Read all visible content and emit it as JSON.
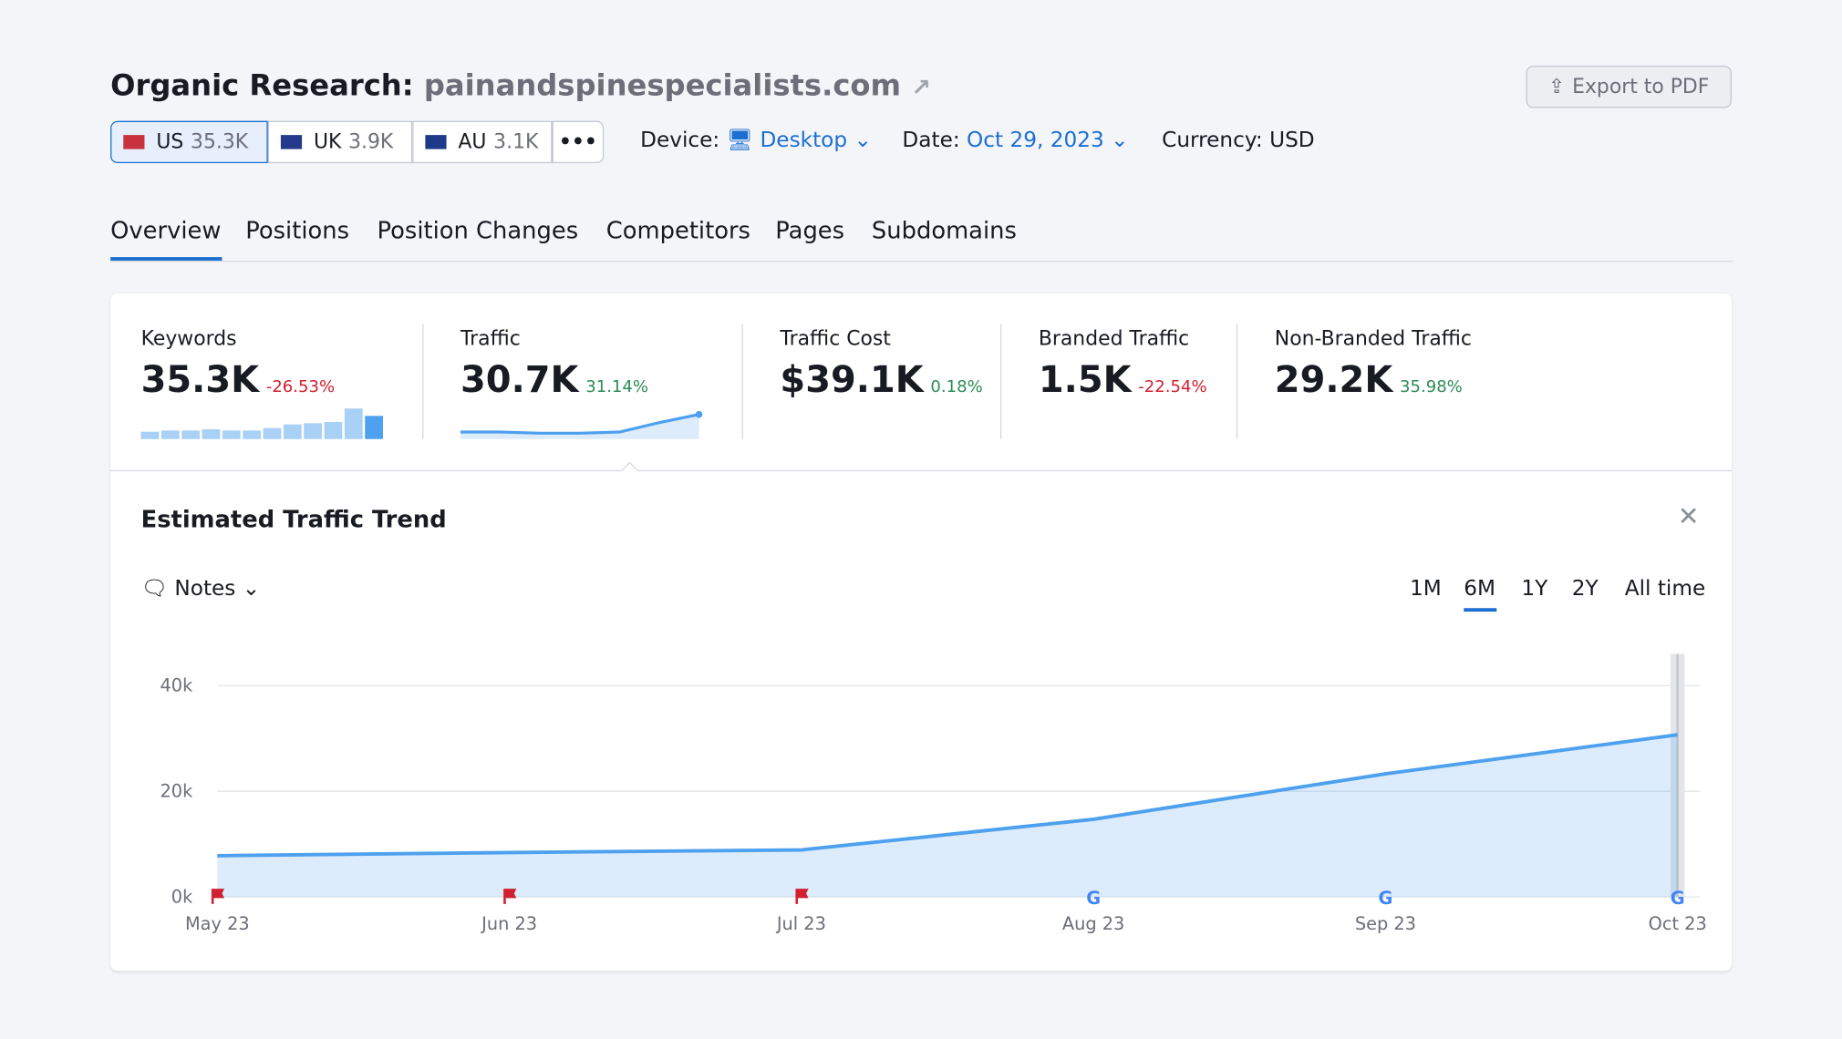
{
  "header": {
    "title": "Organic Research:",
    "domain": "painandspinespecialists.com",
    "export": "Export to PDF"
  },
  "databases": [
    {
      "code": "US",
      "value": "35.3K"
    },
    {
      "code": "UK",
      "value": "3.9K"
    },
    {
      "code": "AU",
      "value": "3.1K"
    }
  ],
  "filters": {
    "device_label": "Device:",
    "device": "Desktop",
    "date_label": "Date:",
    "date": "Oct 29, 2023",
    "currency": "Currency: USD"
  },
  "tabs": [
    "Overview",
    "Positions",
    "Position Changes",
    "Competitors",
    "Pages",
    "Subdomains"
  ],
  "metrics": [
    {
      "label": "Keywords",
      "value": "35.3K",
      "change": "-26.53%",
      "trend": "down"
    },
    {
      "label": "Traffic",
      "value": "30.7K",
      "change": "31.14%",
      "trend": "up"
    },
    {
      "label": "Traffic Cost",
      "value": "$39.1K",
      "change": "0.18%",
      "trend": "up"
    },
    {
      "label": "Branded Traffic",
      "value": "1.5K",
      "change": "-22.54%",
      "trend": "down"
    },
    {
      "label": "Non-Branded Traffic",
      "value": "29.2K",
      "change": "35.98%",
      "trend": "up"
    }
  ],
  "keywords_sparkline": [
    6,
    7,
    7,
    8,
    7,
    7,
    9,
    12,
    13,
    14,
    25,
    19
  ],
  "traffic_sparkline": [
    6,
    6,
    5,
    5,
    6,
    14,
    21
  ],
  "trend": {
    "title": "Estimated Traffic Trend",
    "notes": "Notes",
    "ranges": [
      "1M",
      "6M",
      "1Y",
      "2Y",
      "All time"
    ],
    "selected_range": "6M"
  },
  "chart_data": {
    "type": "area",
    "categories": [
      "May 23",
      "Jun 23",
      "Jul 23",
      "Aug 23",
      "Sep 23",
      "Oct 23"
    ],
    "values": [
      7800,
      8400,
      8900,
      14700,
      23300,
      30700
    ],
    "color": "#4ea1ee",
    "markers": [
      "flag",
      "flag",
      "flag",
      "google",
      "google",
      "google"
    ],
    "ylim": [
      0,
      46000
    ],
    "yticks": [
      {
        "value": 0,
        "label": "0k"
      },
      {
        "value": 20000,
        "label": "20k"
      },
      {
        "value": 40000,
        "label": "40k"
      }
    ],
    "grid": true
  }
}
